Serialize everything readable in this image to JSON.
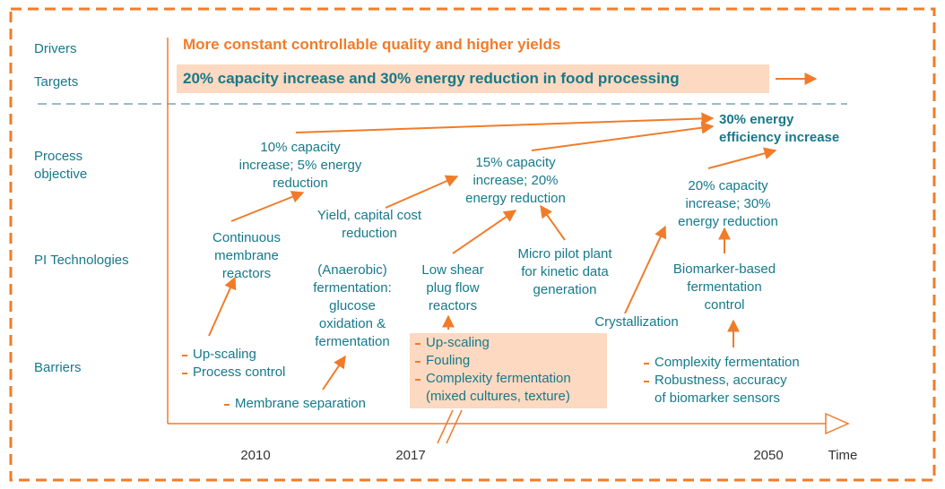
{
  "driver": "More constant controllable quality and higher yields",
  "target": "20% capacity increase and 30% energy reduction in food processing",
  "row_labels": [
    [
      "Drivers"
    ],
    [
      "Targets"
    ],
    [
      "Process",
      "objective"
    ],
    [
      "PI Technologies"
    ],
    [
      "Barriers"
    ]
  ],
  "objectives": [
    [
      "10% capacity",
      "increase; 5% energy",
      "reduction"
    ],
    [
      "15% capacity",
      "increase; 20%",
      "energy reduction"
    ],
    [
      "20% capacity",
      "increase; 30%",
      "energy reduction"
    ]
  ],
  "goal": [
    "30% energy",
    "efficiency increase"
  ],
  "technologies": [
    [
      "Continuous",
      "membrane",
      "reactors"
    ],
    [
      "Yield, capital cost",
      "reduction"
    ],
    [
      "(Anaerobic)",
      "fermentation:",
      "glucose",
      "oxidation &",
      "fermentation"
    ],
    [
      "Low shear",
      "plug flow",
      "reactors"
    ],
    [
      "Micro pilot plant",
      "for kinetic data",
      "generation"
    ],
    [
      "Crystallization"
    ],
    [
      "Biomarker-based",
      "fermentation",
      "control"
    ]
  ],
  "barriers": [
    [
      [
        "Up-scaling"
      ],
      [
        "Process control"
      ]
    ],
    [
      [
        "Membrane separation"
      ]
    ],
    [
      [
        "Up-scaling"
      ],
      [
        "Fouling"
      ],
      [
        "Complexity fermentation",
        "(mixed cultures, texture)"
      ]
    ],
    [
      [
        "Complexity fermentation"
      ],
      [
        "Robustness, accuracy",
        "of biomarker sensors"
      ]
    ]
  ],
  "timeline": [
    "2010",
    "2017",
    "2050",
    "Time"
  ]
}
